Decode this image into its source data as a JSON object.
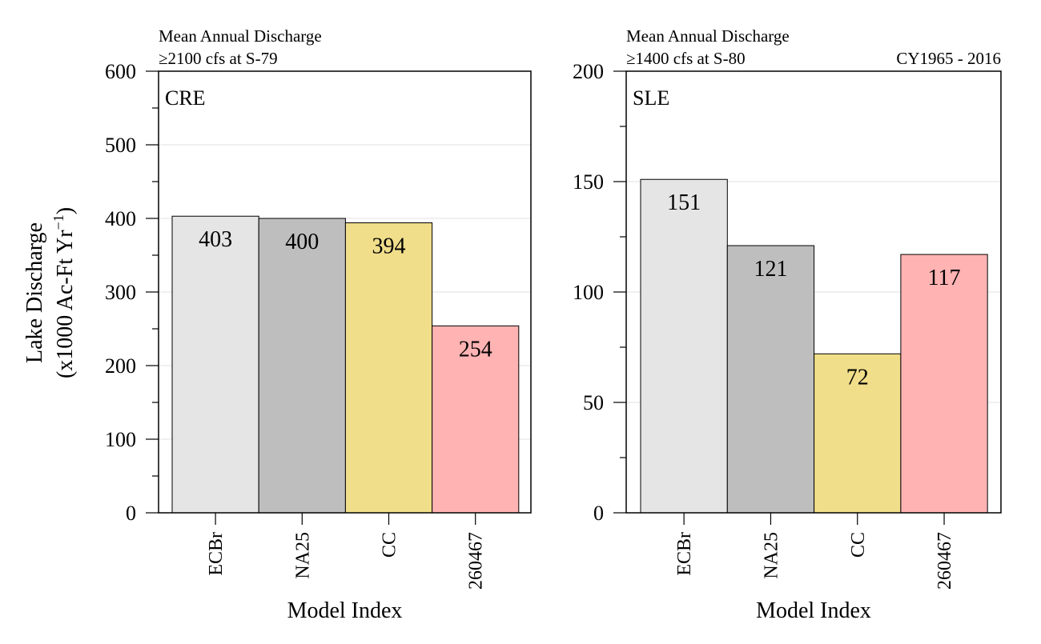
{
  "figure": {
    "ylabel_line1": "Lake Discharge",
    "ylabel_line2_prefix": "(x1000 Ac-Ft Yr",
    "ylabel_line2_sup": "−1",
    "ylabel_line2_suffix": ")",
    "period": "CY1965 - 2016"
  },
  "chart_data": [
    {
      "type": "bar",
      "panel_label": "CRE",
      "subtitle_line1": "Mean Annual Discharge",
      "subtitle_line2": "≥2100 cfs at S-79",
      "xlabel": "Model Index",
      "ylabel": "Lake Discharge (x1000 Ac-Ft Yr⁻¹)",
      "categories": [
        "ECBr",
        "NA25",
        "CC",
        "260467"
      ],
      "values": [
        403,
        400,
        394,
        254
      ],
      "colors": [
        "#e5e5e5",
        "#bebebe",
        "#f0de8a",
        "#ffb3b3"
      ],
      "ylim": [
        0,
        600
      ],
      "major_ticks": [
        0,
        100,
        200,
        300,
        400,
        500,
        600
      ],
      "minor_ticks": [
        50,
        150,
        250,
        350,
        450,
        550
      ],
      "grid": true
    },
    {
      "type": "bar",
      "panel_label": "SLE",
      "subtitle_line1": "Mean Annual Discharge",
      "subtitle_line2": "≥1400 cfs at S-80",
      "xlabel": "Model Index",
      "categories": [
        "ECBr",
        "NA25",
        "CC",
        "260467"
      ],
      "values": [
        151,
        121,
        72,
        117
      ],
      "colors": [
        "#e5e5e5",
        "#bebebe",
        "#f0de8a",
        "#ffb3b3"
      ],
      "ylim": [
        0,
        200
      ],
      "major_ticks": [
        0,
        50,
        100,
        150,
        200
      ],
      "minor_ticks": [
        25,
        75,
        125,
        175
      ],
      "grid": true
    }
  ]
}
